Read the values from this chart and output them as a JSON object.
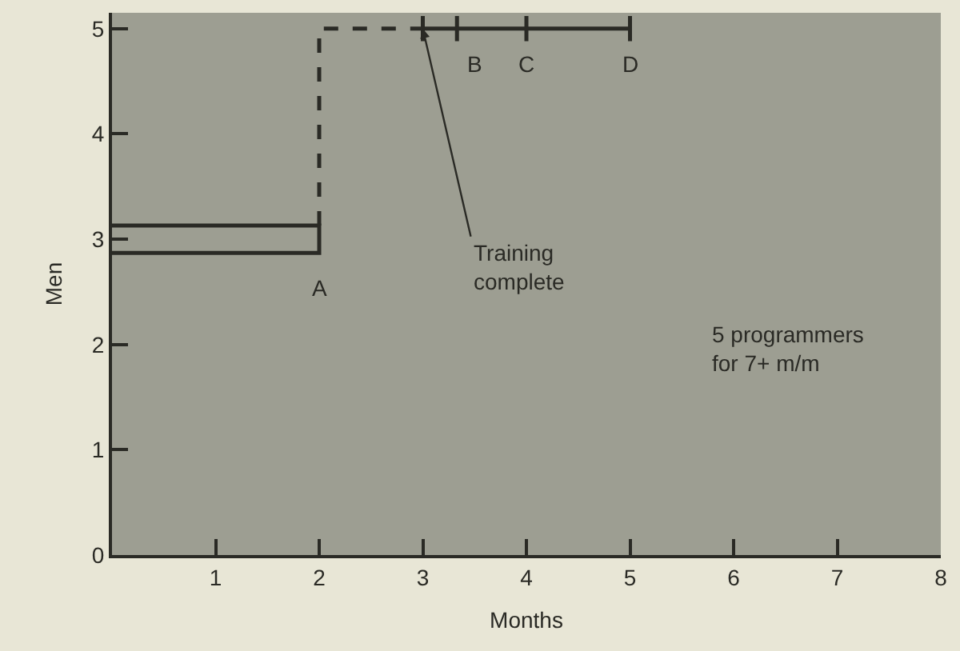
{
  "chart_data": {
    "type": "line",
    "xlabel": "Months",
    "ylabel": "Men",
    "xlim": [
      0,
      8
    ],
    "xticks": [
      1,
      2,
      3,
      4,
      5,
      6,
      7,
      8
    ],
    "ylim": [
      0,
      5.15
    ],
    "yticks": [
      0,
      1,
      2,
      3,
      4,
      5
    ],
    "grid": false,
    "series": [
      {
        "color": "#2a2a25",
        "line_style": "solid",
        "x": [
          0,
          2,
          2,
          0
        ],
        "values": [
          3.13,
          3.13,
          2.87,
          2.87
        ]
      },
      {
        "color": "#2a2a25",
        "line_style": "dashed",
        "x": [
          2,
          2,
          3
        ],
        "values": [
          3.13,
          5,
          5
        ]
      },
      {
        "color": "#2a2a25",
        "line_style": "solid",
        "x": [
          3,
          3,
          3,
          3,
          3.33,
          3.33,
          3.33,
          3.33,
          4,
          4,
          4,
          4,
          5,
          5,
          5,
          5
        ],
        "values": [
          5,
          5.12,
          4.88,
          5,
          5,
          5.12,
          4.88,
          5,
          5,
          5.12,
          4.88,
          5,
          5,
          5.12,
          4.88,
          5
        ]
      }
    ],
    "annotations": [
      {
        "text": "A",
        "x": 2,
        "y": 2.87
      },
      {
        "text": "B",
        "x": 3.5,
        "y": 5
      },
      {
        "text": "C",
        "x": 4,
        "y": 5
      },
      {
        "text": "D",
        "x": 5,
        "y": 5
      },
      {
        "text": "Training\ncomplete",
        "x": 3,
        "y": 5
      },
      "5 programmers\nfor 7+ m/m"
    ]
  }
}
